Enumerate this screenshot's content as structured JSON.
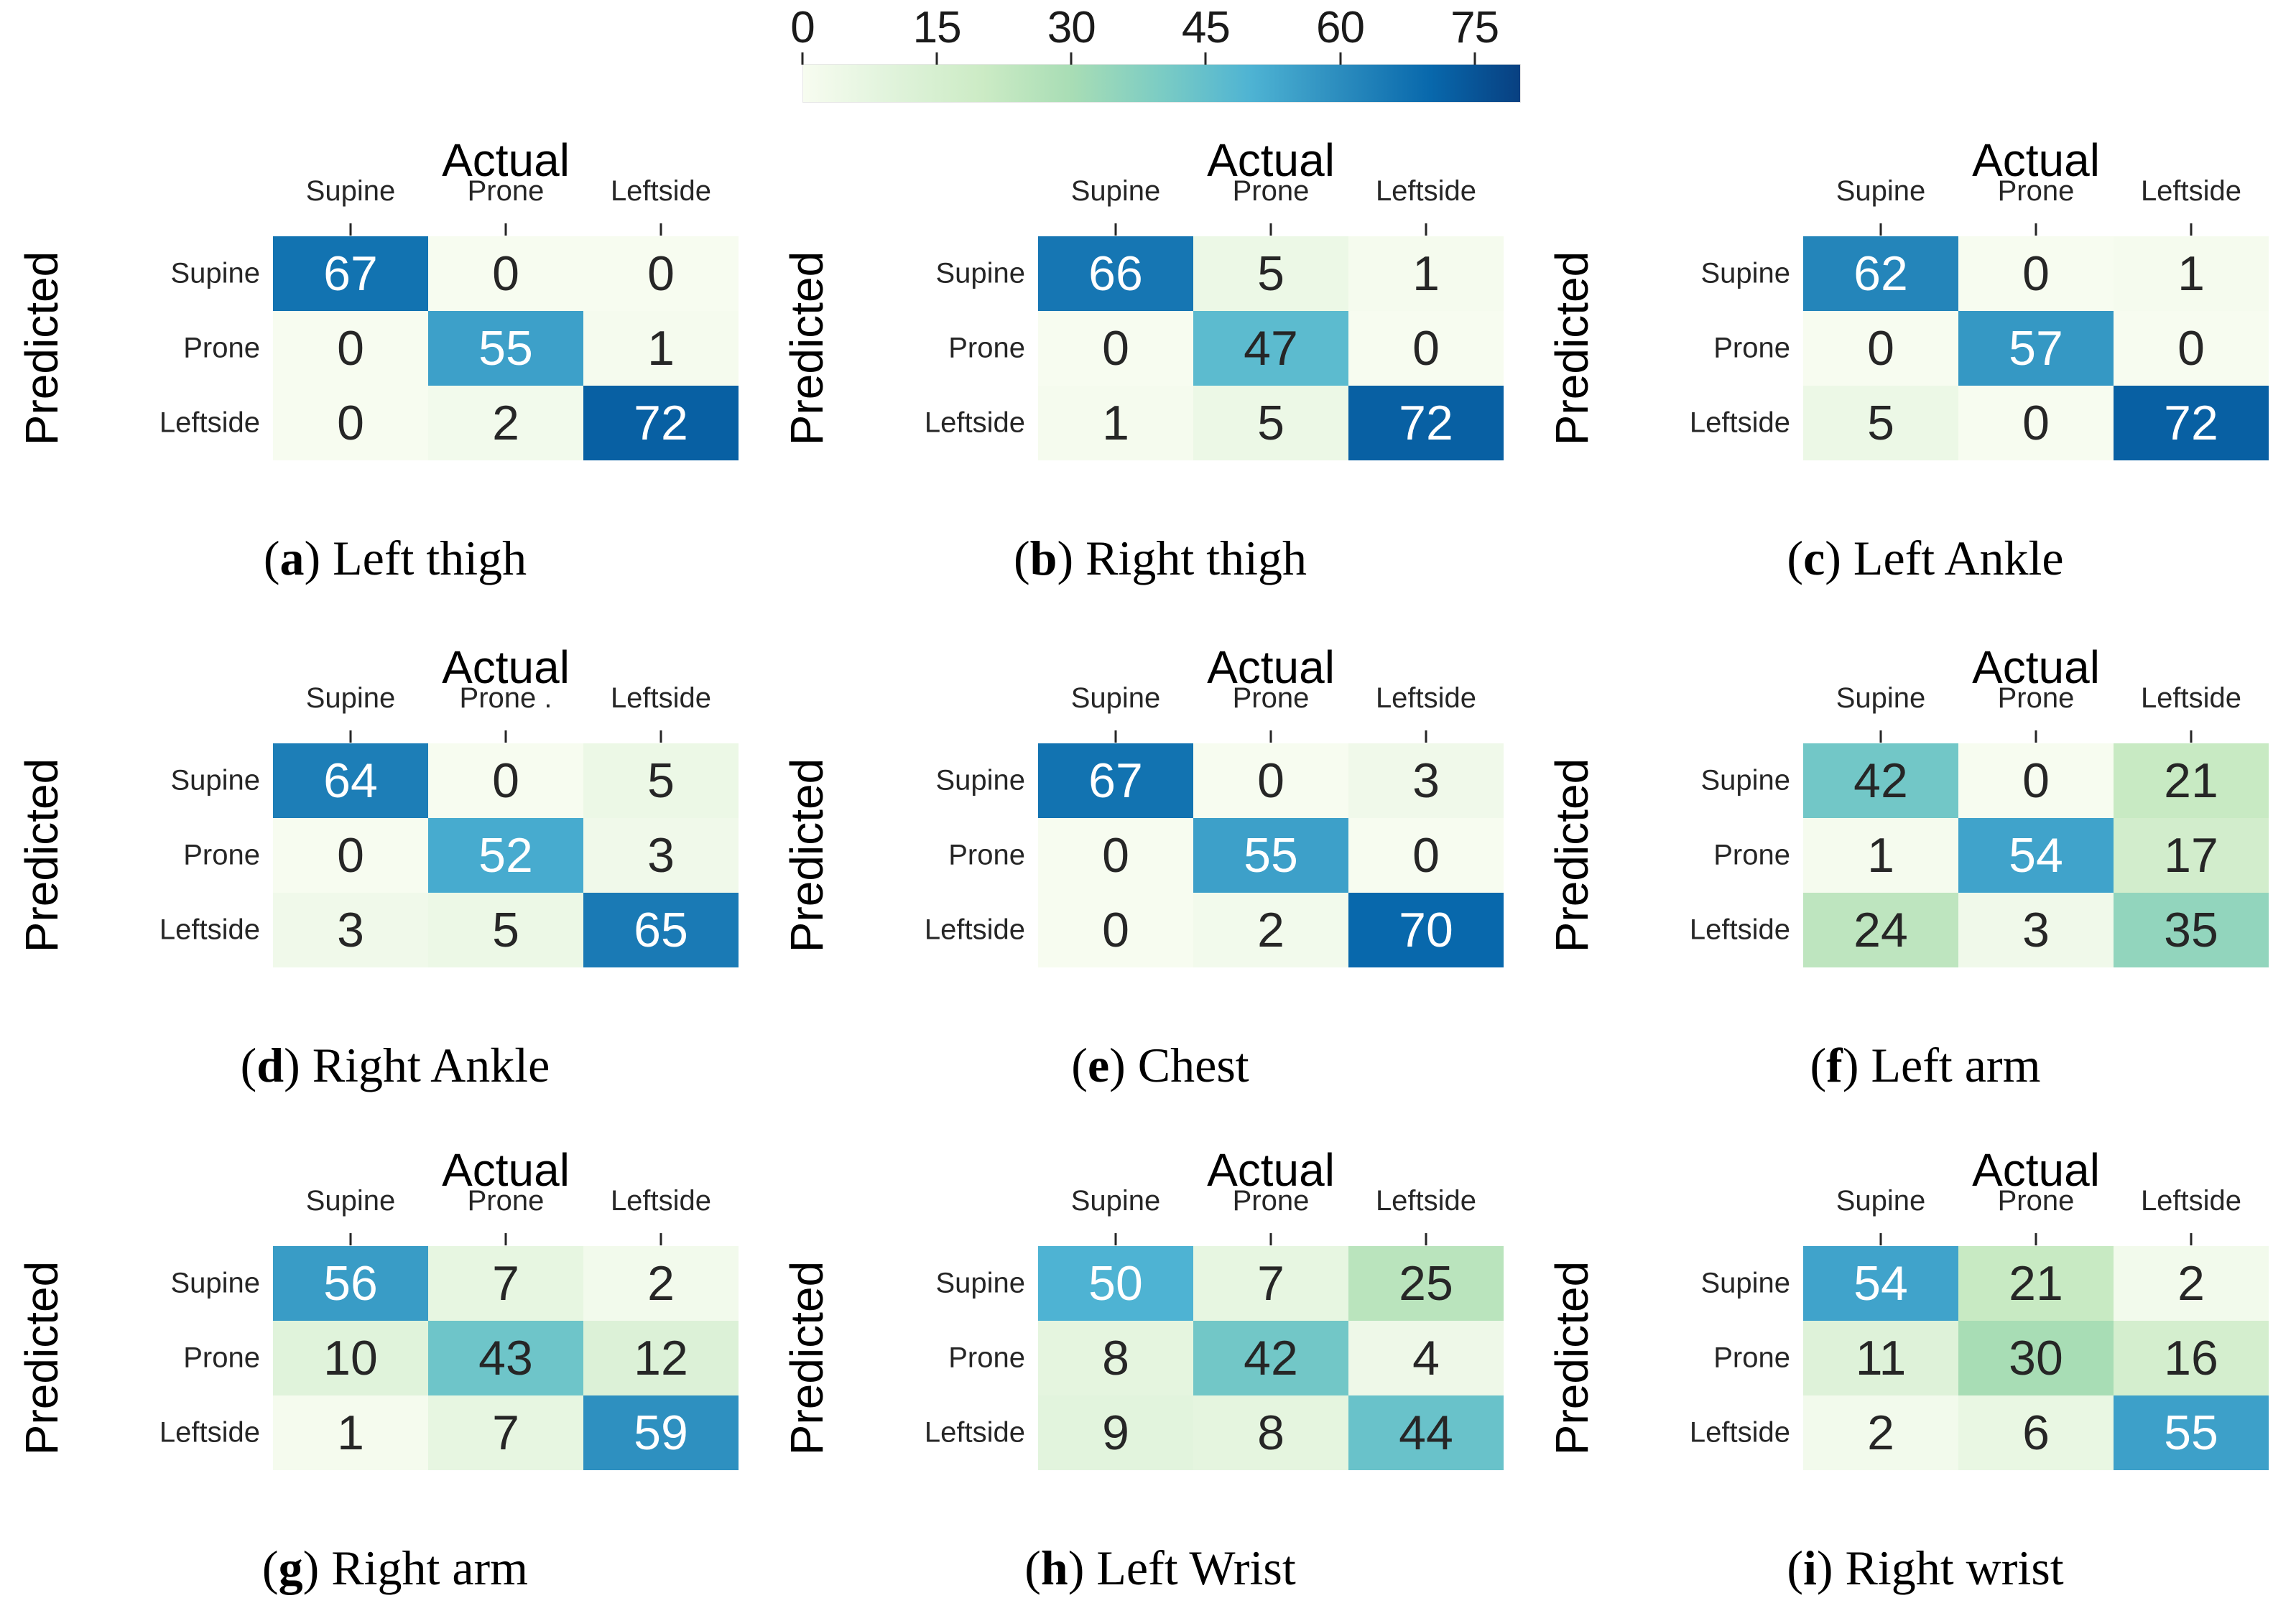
{
  "figure": {
    "background": "#ffffff",
    "caption_open": "(",
    "caption_close": ")"
  },
  "chart_data": {
    "type": "heatmap",
    "subtype": "confusion-matrix-grid",
    "x_axis_title": "Actual",
    "y_axis_title": "Predicted",
    "rows": [
      "Supine",
      "Prone",
      "Leftside"
    ],
    "default_columns": [
      "Supine",
      "Prone",
      "Leftside"
    ],
    "scale": {
      "vmin": 0,
      "vmax": 80
    },
    "colorbar": {
      "orientation": "horizontal",
      "ticks": [
        0,
        15,
        30,
        45,
        60,
        75
      ]
    },
    "colormap": {
      "name": "GnBu",
      "stops": [
        {
          "pos": 0.0,
          "color": "#f7fcf0"
        },
        {
          "pos": 0.125,
          "color": "#e0f3db"
        },
        {
          "pos": 0.25,
          "color": "#ccebc5"
        },
        {
          "pos": 0.375,
          "color": "#a8ddb5"
        },
        {
          "pos": 0.5,
          "color": "#7bccc4"
        },
        {
          "pos": 0.625,
          "color": "#4eb3d3"
        },
        {
          "pos": 0.75,
          "color": "#2b8cbe"
        },
        {
          "pos": 0.875,
          "color": "#0868ac"
        },
        {
          "pos": 1.0,
          "color": "#084081"
        }
      ]
    },
    "annotation_colors": {
      "dark": "#262626",
      "light": "#ffffff",
      "luminance_threshold": 0.408
    },
    "panels": [
      {
        "letter": "a",
        "caption": "Left thigh",
        "columns": [
          "Supine",
          "Prone",
          "Leftside"
        ],
        "values": [
          [
            67,
            0,
            0
          ],
          [
            0,
            55,
            1
          ],
          [
            0,
            2,
            72
          ]
        ]
      },
      {
        "letter": "b",
        "caption": "Right thigh",
        "columns": [
          "Supine",
          "Prone",
          "Leftside"
        ],
        "values": [
          [
            66,
            5,
            1
          ],
          [
            0,
            47,
            0
          ],
          [
            1,
            5,
            72
          ]
        ]
      },
      {
        "letter": "c",
        "caption": "Left Ankle",
        "columns": [
          "Supine",
          "Prone",
          "Leftside"
        ],
        "values": [
          [
            62,
            0,
            1
          ],
          [
            0,
            57,
            0
          ],
          [
            5,
            0,
            72
          ]
        ]
      },
      {
        "letter": "d",
        "caption": "Right Ankle",
        "columns": [
          "Supine",
          "Prone .",
          "Leftside"
        ],
        "values": [
          [
            64,
            0,
            5
          ],
          [
            0,
            52,
            3
          ],
          [
            3,
            5,
            65
          ]
        ]
      },
      {
        "letter": "e",
        "caption": "Chest",
        "columns": [
          "Supine",
          "Prone",
          "Leftside"
        ],
        "values": [
          [
            67,
            0,
            3
          ],
          [
            0,
            55,
            0
          ],
          [
            0,
            2,
            70
          ]
        ]
      },
      {
        "letter": "f",
        "caption": "Left arm",
        "columns": [
          "Supine",
          "Prone",
          "Leftside"
        ],
        "values": [
          [
            42,
            0,
            21
          ],
          [
            1,
            54,
            17
          ],
          [
            24,
            3,
            35
          ]
        ]
      },
      {
        "letter": "g",
        "caption": "Right arm",
        "columns": [
          "Supine",
          "Prone",
          "Leftside"
        ],
        "values": [
          [
            56,
            7,
            2
          ],
          [
            10,
            43,
            12
          ],
          [
            1,
            7,
            59
          ]
        ]
      },
      {
        "letter": "h",
        "caption": "Left Wrist",
        "columns": [
          "Supine",
          "Prone",
          "Leftside"
        ],
        "values": [
          [
            50,
            7,
            25
          ],
          [
            8,
            42,
            4
          ],
          [
            9,
            8,
            44
          ]
        ]
      },
      {
        "letter": "i",
        "caption": "Right wrist",
        "columns": [
          "Supine",
          "Prone",
          "Leftside"
        ],
        "values": [
          [
            54,
            21,
            2
          ],
          [
            11,
            30,
            16
          ],
          [
            2,
            6,
            55
          ]
        ]
      }
    ]
  }
}
